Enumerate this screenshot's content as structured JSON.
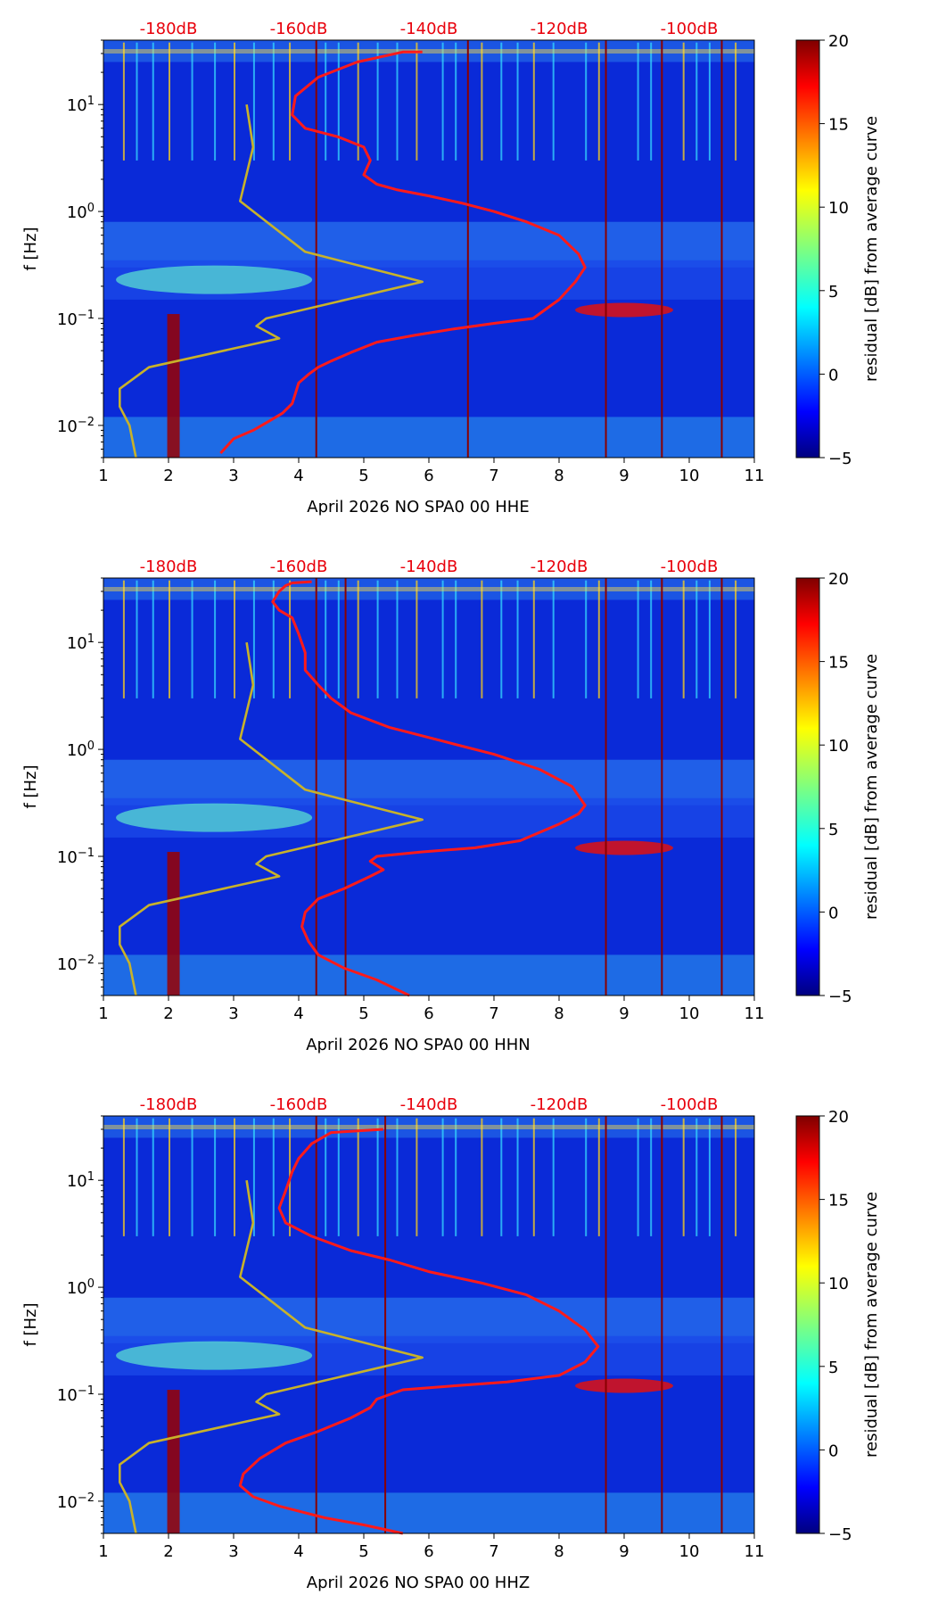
{
  "chart_data": [
    {
      "type": "heatmap",
      "title": "",
      "xlabel": "April 2026 NO SPA0 00 HHE",
      "ylabel": "f [Hz]",
      "x_range": [
        1,
        11
      ],
      "x_ticks": [
        "1",
        "2",
        "3",
        "4",
        "5",
        "6",
        "7",
        "8",
        "9",
        "10",
        "11"
      ],
      "y_range_hz": [
        0.005,
        40
      ],
      "y_scale": "log",
      "y_ticks": [
        {
          "value": 0.01,
          "base": "10",
          "exp": "−2"
        },
        {
          "value": 0.1,
          "base": "10",
          "exp": "−1"
        },
        {
          "value": 1,
          "base": "10",
          "exp": "0"
        },
        {
          "value": 10,
          "base": "10",
          "exp": "1"
        }
      ],
      "top_axis": {
        "labels": [
          "-180dB",
          "-160dB",
          "-140dB",
          "-120dB",
          "-100dB"
        ],
        "positions_day": [
          2,
          4,
          6,
          8,
          10
        ],
        "color": "#e8000b"
      },
      "colorbar": {
        "label": "residual [dB] from average curve",
        "range": [
          -5,
          20
        ],
        "ticks": [
          "20",
          "15",
          "10",
          "5",
          "0",
          "−5"
        ],
        "colormap": "jet"
      },
      "event_lines_day": [
        4.27,
        6.6,
        8.72,
        9.58,
        10.5
      ],
      "series": [
        {
          "name": "median PSD (red)",
          "color": "#ff1a1a",
          "x": [
            2.8,
            3.0,
            3.3,
            3.55,
            3.75,
            3.9,
            3.95,
            4.0,
            4.15,
            4.3,
            4.5,
            4.8,
            5.2,
            5.8,
            6.4,
            7.0,
            7.6,
            8.0,
            8.25,
            8.4,
            8.3,
            8.0,
            7.5,
            7.0,
            6.5,
            6.0,
            5.5,
            5.2,
            5.0,
            5.1,
            5.0,
            4.6,
            4.1,
            3.9,
            3.95,
            4.3,
            4.9,
            5.6,
            5.9
          ],
          "y": [
            0.0055,
            0.0075,
            0.009,
            0.011,
            0.013,
            0.016,
            0.02,
            0.025,
            0.03,
            0.035,
            0.04,
            0.048,
            0.06,
            0.07,
            0.08,
            0.09,
            0.1,
            0.15,
            0.22,
            0.3,
            0.4,
            0.6,
            0.8,
            1.0,
            1.2,
            1.4,
            1.6,
            1.8,
            2.2,
            3.0,
            4.0,
            5.0,
            6.0,
            8.0,
            12.0,
            18.0,
            25.0,
            31.0,
            31.0
          ]
        },
        {
          "name": "NLNM/NHNM models (yellow)",
          "color": "#c8b22a",
          "x": [
            1.5,
            1.4,
            1.25,
            1.25,
            1.7,
            3.7,
            3.35,
            3.5,
            5.9,
            4.1,
            3.1,
            3.3,
            3.2
          ],
          "y": [
            0.005,
            0.01,
            0.015,
            0.022,
            0.035,
            0.065,
            0.085,
            0.1,
            0.22,
            0.42,
            1.25,
            4.0,
            10.0
          ]
        }
      ]
    },
    {
      "type": "heatmap",
      "title": "",
      "xlabel": "April 2026 NO SPA0 00 HHN",
      "ylabel": "f [Hz]",
      "x_range": [
        1,
        11
      ],
      "x_ticks": [
        "1",
        "2",
        "3",
        "4",
        "5",
        "6",
        "7",
        "8",
        "9",
        "10",
        "11"
      ],
      "y_range_hz": [
        0.005,
        40
      ],
      "y_scale": "log",
      "y_ticks": [
        {
          "value": 0.01,
          "base": "10",
          "exp": "−2"
        },
        {
          "value": 0.1,
          "base": "10",
          "exp": "−1"
        },
        {
          "value": 1,
          "base": "10",
          "exp": "0"
        },
        {
          "value": 10,
          "base": "10",
          "exp": "1"
        }
      ],
      "top_axis": {
        "labels": [
          "-180dB",
          "-160dB",
          "-140dB",
          "-120dB",
          "-100dB"
        ],
        "positions_day": [
          2,
          4,
          6,
          8,
          10
        ],
        "color": "#e8000b"
      },
      "colorbar": {
        "label": "residual [dB] from average curve",
        "range": [
          -5,
          20
        ],
        "ticks": [
          "20",
          "15",
          "10",
          "5",
          "0",
          "−5"
        ],
        "colormap": "jet"
      },
      "event_lines_day": [
        4.27,
        4.72,
        8.72,
        9.58,
        10.5
      ],
      "series": [
        {
          "name": "median PSD (red)",
          "color": "#ff1a1a",
          "x": [
            5.7,
            5.2,
            4.7,
            4.3,
            4.15,
            4.05,
            4.1,
            4.3,
            4.7,
            5.1,
            5.3,
            5.1,
            5.2,
            5.9,
            6.7,
            7.4,
            8.0,
            8.3,
            8.4,
            8.2,
            7.7,
            7.0,
            6.2,
            5.4,
            4.8,
            4.5,
            4.3,
            4.1,
            4.1,
            4.0,
            3.9,
            3.7,
            3.6,
            3.7,
            3.8,
            3.9,
            4.2
          ],
          "y": [
            0.005,
            0.007,
            0.009,
            0.012,
            0.016,
            0.022,
            0.03,
            0.04,
            0.05,
            0.065,
            0.075,
            0.09,
            0.1,
            0.11,
            0.12,
            0.14,
            0.2,
            0.25,
            0.3,
            0.45,
            0.65,
            0.9,
            1.2,
            1.6,
            2.2,
            3.0,
            4.0,
            5.5,
            8.0,
            12.0,
            17.0,
            20.0,
            24.0,
            30.0,
            34.0,
            36.0,
            37.0
          ]
        },
        {
          "name": "NLNM/NHNM models (yellow)",
          "color": "#c8b22a",
          "x": [
            1.5,
            1.4,
            1.25,
            1.25,
            1.7,
            3.7,
            3.35,
            3.5,
            5.9,
            4.1,
            3.1,
            3.3,
            3.2
          ],
          "y": [
            0.005,
            0.01,
            0.015,
            0.022,
            0.035,
            0.065,
            0.085,
            0.1,
            0.22,
            0.42,
            1.25,
            4.0,
            10.0
          ]
        }
      ]
    },
    {
      "type": "heatmap",
      "title": "",
      "xlabel": "April 2026 NO SPA0 00 HHZ",
      "ylabel": "f [Hz]",
      "x_range": [
        1,
        11
      ],
      "x_ticks": [
        "1",
        "2",
        "3",
        "4",
        "5",
        "6",
        "7",
        "8",
        "9",
        "10",
        "11"
      ],
      "y_range_hz": [
        0.005,
        40
      ],
      "y_scale": "log",
      "y_ticks": [
        {
          "value": 0.01,
          "base": "10",
          "exp": "−2"
        },
        {
          "value": 0.1,
          "base": "10",
          "exp": "−1"
        },
        {
          "value": 1,
          "base": "10",
          "exp": "0"
        },
        {
          "value": 10,
          "base": "10",
          "exp": "1"
        }
      ],
      "top_axis": {
        "labels": [
          "-180dB",
          "-160dB",
          "-140dB",
          "-120dB",
          "-100dB"
        ],
        "positions_day": [
          2,
          4,
          6,
          8,
          10
        ],
        "color": "#e8000b"
      },
      "colorbar": {
        "label": "residual [dB] from average curve",
        "range": [
          -5,
          20
        ],
        "ticks": [
          "20",
          "15",
          "10",
          "5",
          "0",
          "−5"
        ],
        "colormap": "jet"
      },
      "event_lines_day": [
        4.27,
        5.33,
        8.72,
        9.58,
        10.5
      ],
      "series": [
        {
          "name": "median PSD (red)",
          "color": "#ff1a1a",
          "x": [
            5.6,
            5.0,
            4.4,
            3.7,
            3.3,
            3.1,
            3.15,
            3.4,
            3.8,
            4.3,
            4.8,
            5.1,
            5.2,
            5.6,
            6.4,
            7.2,
            8.0,
            8.4,
            8.6,
            8.4,
            8.0,
            7.5,
            6.8,
            6.0,
            5.4,
            4.8,
            4.2,
            3.8,
            3.7,
            3.8,
            3.9,
            4.0,
            4.2,
            4.5,
            5.3
          ],
          "y": [
            0.005,
            0.006,
            0.007,
            0.009,
            0.011,
            0.014,
            0.018,
            0.025,
            0.035,
            0.045,
            0.06,
            0.075,
            0.09,
            0.11,
            0.12,
            0.13,
            0.15,
            0.2,
            0.28,
            0.4,
            0.6,
            0.85,
            1.1,
            1.4,
            1.8,
            2.2,
            3.0,
            4.0,
            5.5,
            8.0,
            12.0,
            16.0,
            22.0,
            28.0,
            30.0
          ]
        },
        {
          "name": "NLNM/NHNM models (yellow)",
          "color": "#c8b22a",
          "x": [
            1.5,
            1.4,
            1.25,
            1.25,
            1.7,
            3.7,
            3.35,
            3.5,
            5.9,
            4.1,
            3.1,
            3.3,
            3.2
          ],
          "y": [
            0.005,
            0.01,
            0.015,
            0.022,
            0.035,
            0.065,
            0.085,
            0.1,
            0.22,
            0.42,
            1.25,
            4.0,
            10.0
          ]
        }
      ]
    }
  ]
}
